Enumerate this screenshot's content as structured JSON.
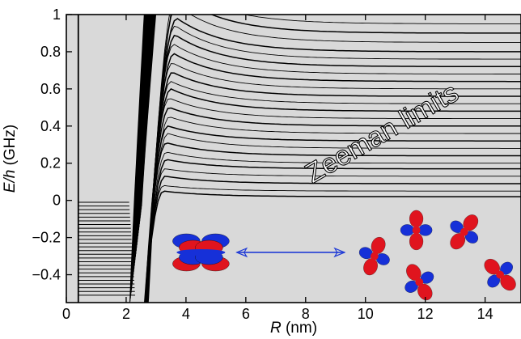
{
  "chart_data": {
    "type": "line",
    "title": "",
    "xlabel": {
      "italic": "R",
      "rest": " (nm)"
    },
    "ylabel": {
      "italic": "E/h",
      "rest": " (GHz)"
    },
    "xlim": [
      0,
      15.2
    ],
    "ylim": [
      -0.55,
      1.0
    ],
    "xticks": [
      0,
      2,
      4,
      6,
      8,
      10,
      12,
      14
    ],
    "yticks": [
      1,
      0.8,
      0.6,
      0.4,
      0.2,
      0,
      -0.2,
      -0.4
    ],
    "ytick_labels": [
      "1",
      "0.8",
      "0.6",
      "0.4",
      "0.2",
      "0",
      "−0.2",
      "−0.4"
    ],
    "grid": false,
    "background": "#d9d9d9",
    "annotation": {
      "text": "Zeeman limits",
      "x": 10.7,
      "y": 0.32,
      "angle_deg": -30
    },
    "repulsive_curves": {
      "description": "potential curves rising from the inner wall near R = 2.5 nm to their Zeeman limits",
      "series": [
        {
          "name": "",
          "asymptote": 0.02,
          "peak": 0.05,
          "wall_R": 2.5
        },
        {
          "name": "",
          "asymptote": 0.05,
          "peak": 0.08,
          "wall_R": 2.5
        },
        {
          "name": "",
          "asymptote": 0.09,
          "peak": 0.13,
          "wall_R": 2.55
        },
        {
          "name": "",
          "asymptote": 0.13,
          "peak": 0.17,
          "wall_R": 2.55
        },
        {
          "name": "",
          "asymptote": 0.17,
          "peak": 0.22,
          "wall_R": 2.6
        },
        {
          "name": "",
          "asymptote": 0.2,
          "peak": 0.26,
          "wall_R": 2.6
        },
        {
          "name": "",
          "asymptote": 0.24,
          "peak": 0.31,
          "wall_R": 2.6
        },
        {
          "name": "",
          "asymptote": 0.28,
          "peak": 0.36,
          "wall_R": 2.65
        },
        {
          "name": "",
          "asymptote": 0.32,
          "peak": 0.4,
          "wall_R": 2.65
        },
        {
          "name": "",
          "asymptote": 0.36,
          "peak": 0.45,
          "wall_R": 2.7
        },
        {
          "name": "",
          "asymptote": 0.4,
          "peak": 0.5,
          "wall_R": 2.7
        },
        {
          "name": "",
          "asymptote": 0.44,
          "peak": 0.55,
          "wall_R": 2.7
        },
        {
          "name": "",
          "asymptote": 0.48,
          "peak": 0.6,
          "wall_R": 2.75
        },
        {
          "name": "",
          "asymptote": 0.52,
          "peak": 0.64,
          "wall_R": 2.75
        },
        {
          "name": "",
          "asymptote": 0.56,
          "peak": 0.69,
          "wall_R": 2.8
        },
        {
          "name": "",
          "asymptote": 0.6,
          "peak": 0.74,
          "wall_R": 2.8
        },
        {
          "name": "",
          "asymptote": 0.64,
          "peak": 0.79,
          "wall_R": 2.85
        },
        {
          "name": "",
          "asymptote": 0.68,
          "peak": 0.84,
          "wall_R": 2.85
        },
        {
          "name": "",
          "asymptote": 0.72,
          "peak": 0.89,
          "wall_R": 2.9
        },
        {
          "name": "",
          "asymptote": 0.76,
          "peak": 0.94,
          "wall_R": 2.9
        },
        {
          "name": "",
          "asymptote": 0.8,
          "peak": 0.98,
          "wall_R": 2.95
        },
        {
          "name": "",
          "asymptote": 0.85,
          "peak": 1.05,
          "wall_R": 2.95
        },
        {
          "name": "",
          "asymptote": 0.9,
          "peak": 1.1,
          "wall_R": 3.0
        },
        {
          "name": "",
          "asymptote": 0.95,
          "peak": 1.15,
          "wall_R": 3.0
        }
      ]
    },
    "bound_levels": {
      "description": "short horizontal bound-state levels below zero on the inner region",
      "x_start": 0.4,
      "energies": [
        -0.01,
        -0.03,
        -0.05,
        -0.07,
        -0.09,
        -0.11,
        -0.13,
        -0.15,
        -0.17,
        -0.19,
        -0.21,
        -0.23,
        -0.25,
        -0.27,
        -0.29,
        -0.31,
        -0.33,
        -0.35,
        -0.37,
        -0.39,
        -0.41,
        -0.43,
        -0.45,
        -0.47,
        -0.49,
        -0.51
      ]
    },
    "steep_curves": {
      "description": "near-vertical inner-wall curves between R = 2.1 and 2.6 nm",
      "count": 34
    },
    "inner_wall_line": {
      "x": 0.4
    },
    "double_arrow": {
      "x1": 5.7,
      "x2": 9.3,
      "y": -0.28,
      "color": "#1f3ad6"
    },
    "orbitals": {
      "colors": {
        "positive": "#e0141e",
        "negative": "#1630d8"
      },
      "items": [
        {
          "kind": "paired",
          "x": 4.5,
          "y": -0.28,
          "rot": 0,
          "scale": 1.0
        },
        {
          "kind": "clover",
          "x": 10.3,
          "y": -0.3,
          "rot": 20,
          "scale": 0.7
        },
        {
          "kind": "clover",
          "x": 11.7,
          "y": -0.16,
          "rot": 0,
          "scale": 0.7
        },
        {
          "kind": "clover",
          "x": 11.8,
          "y": -0.44,
          "rot": -30,
          "scale": 0.7
        },
        {
          "kind": "clover",
          "x": 13.3,
          "y": -0.17,
          "rot": 35,
          "scale": 0.7
        },
        {
          "kind": "clover",
          "x": 14.5,
          "y": -0.4,
          "rot": -45,
          "scale": 0.7
        }
      ]
    }
  }
}
